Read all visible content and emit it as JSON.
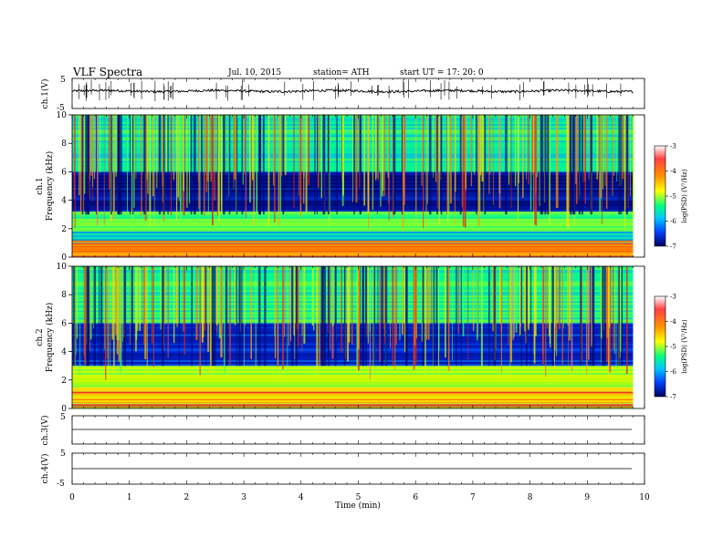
{
  "header": {
    "title": "VLF  Spectra",
    "date": "Jul.  10, 2015",
    "station": "station= ATH",
    "start": "start  UT  =    17: 20: 0"
  },
  "colorbar": {
    "label": "log(PSD) (V²/Hz)",
    "ticks": [
      "-3",
      "-4",
      "-5",
      "-6",
      "-7"
    ],
    "stops": [
      "#ffffff",
      "#ff3030",
      "#ff8800",
      "#ffff00",
      "#00ff80",
      "#00c8ff",
      "#0040ff",
      "#000060"
    ]
  },
  "xaxis": {
    "label": "Time  (min)",
    "ticks": [
      "0",
      "1",
      "2",
      "3",
      "4",
      "5",
      "6",
      "7",
      "8",
      "9",
      "10"
    ]
  },
  "panels": {
    "ch1_wave": {
      "ylabel": "ch.1(V)",
      "ticks": [
        "5",
        "-5"
      ]
    },
    "ch1_spec": {
      "ylabel1": "ch.1",
      "ylabel2": "Frequency  (kHz)",
      "ticks": [
        "10",
        "8",
        "6",
        "4",
        "2",
        "0"
      ]
    },
    "ch2_spec": {
      "ylabel1": "ch.2",
      "ylabel2": "Frequency  (kHz)",
      "ticks": [
        "10",
        "8",
        "6",
        "4",
        "2",
        "0"
      ]
    },
    "ch3_wave": {
      "ylabel": "ch.3(V)",
      "ticks": [
        "5"
      ]
    },
    "ch4_wave": {
      "ylabel": "ch.4(V)",
      "ticks": [
        "5",
        "-5"
      ]
    }
  },
  "chart_data": [
    {
      "type": "line",
      "title": "VLF  Spectra",
      "xlabel": "Time  (min)",
      "ylabel": "ch.1(V)",
      "xlim": [
        0,
        10
      ],
      "ylim": [
        -5,
        5
      ],
      "data_extent_min": 9.8,
      "baseline_v": 0.8,
      "noise_v": 0.4
    },
    {
      "type": "heatmap",
      "xlabel": "Time  (min)",
      "ylabel": "ch.1 Frequency  (kHz)",
      "xlim": [
        0,
        10
      ],
      "ylim": [
        0,
        10
      ],
      "zlabel": "log(PSD) (V²/Hz)",
      "zlim": [
        -7,
        -3
      ],
      "bands_khz": [
        {
          "from": 0.0,
          "to": 0.3,
          "level": -4.5
        },
        {
          "from": 0.3,
          "to": 1.0,
          "level": -4.0
        },
        {
          "from": 1.0,
          "to": 1.8,
          "level": -5.8
        },
        {
          "from": 1.8,
          "to": 3.2,
          "level": -5.4
        },
        {
          "from": 3.2,
          "to": 6.0,
          "level": -6.8
        },
        {
          "from": 6.0,
          "to": 10.0,
          "level": -5.6
        }
      ]
    },
    {
      "type": "heatmap",
      "xlabel": "Time  (min)",
      "ylabel": "ch.2 Frequency  (kHz)",
      "xlim": [
        0,
        10
      ],
      "ylim": [
        0,
        10
      ],
      "zlabel": "log(PSD) (V²/Hz)",
      "zlim": [
        -7,
        -3
      ],
      "bands_khz": [
        {
          "from": 0.0,
          "to": 0.4,
          "level": -5.2
        },
        {
          "from": 0.4,
          "to": 1.5,
          "level": -4.6
        },
        {
          "from": 1.5,
          "to": 3.0,
          "level": -5.0
        },
        {
          "from": 3.0,
          "to": 6.0,
          "level": -6.5
        },
        {
          "from": 6.0,
          "to": 10.0,
          "level": -5.5
        }
      ]
    },
    {
      "type": "line",
      "ylabel": "ch.3(V)",
      "xlim": [
        0,
        10
      ],
      "ylim": [
        -5,
        5
      ],
      "baseline_v": 0.0
    },
    {
      "type": "line",
      "ylabel": "ch.4(V)",
      "xlim": [
        0,
        10
      ],
      "ylim": [
        -5,
        5
      ],
      "baseline_v": 0.0
    }
  ]
}
